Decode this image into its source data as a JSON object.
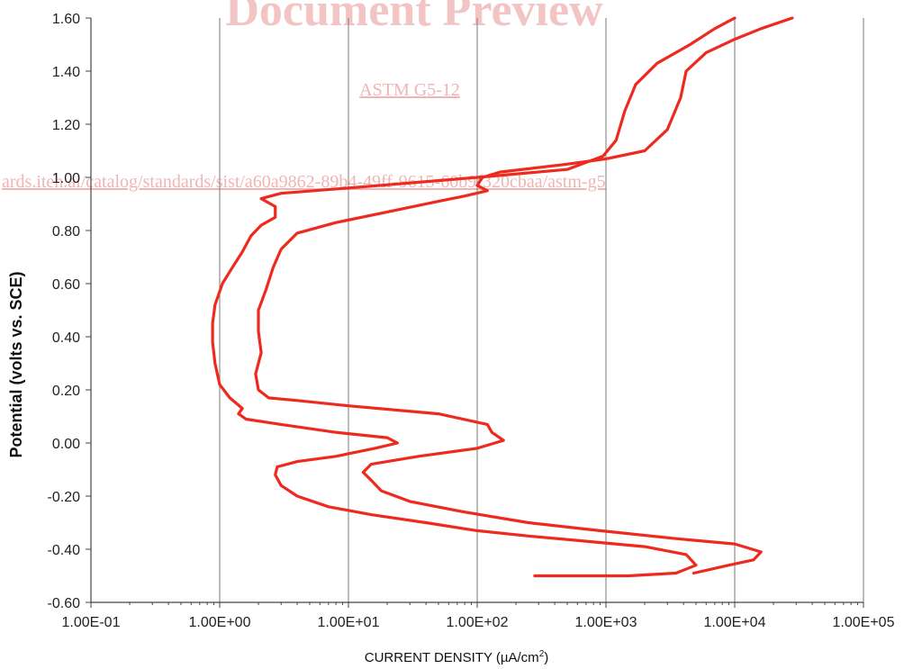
{
  "watermark": {
    "title": "Document Preview",
    "standard": "ASTM G5-12",
    "url": "ards.iteh.ai/catalog/standards/sist/a60a9862-89b4-49ff-9615-60b9f320cbaa/astm-g5"
  },
  "chart_data": {
    "type": "line",
    "xlabel": "CURRENT DENSITY (µA/cm",
    "xlabel_sup": "2",
    "xlabel_close": ")",
    "ylabel": "Potential (volts vs. SCE)",
    "x_scale": "log",
    "xlim": [
      0.1,
      100000
    ],
    "ylim": [
      -0.6,
      1.6
    ],
    "x_tick_values": [
      0.1,
      1,
      10,
      100,
      1000,
      10000,
      100000
    ],
    "x_tick_labels": [
      "1.00E-01",
      "1.00E+00",
      "1.00E+01",
      "1.00E+02",
      "1.00E+03",
      "1.00E+04",
      "1.00E+05"
    ],
    "y_tick_values": [
      -0.6,
      -0.4,
      -0.2,
      0.0,
      0.2,
      0.4,
      0.6,
      0.8,
      1.0,
      1.2,
      1.4,
      1.6
    ],
    "y_tick_labels": [
      "-0.60",
      "-0.40",
      "-0.20",
      "0.00",
      "0.20",
      "0.40",
      "0.60",
      "0.80",
      "1.00",
      "1.20",
      "1.40",
      "1.60"
    ],
    "grid": "vertical",
    "line_color": "#ee2a1f",
    "series": [
      {
        "points": [
          [
            280,
            -0.5
          ],
          [
            1500,
            -0.5
          ],
          [
            3500,
            -0.49
          ],
          [
            5000,
            -0.46
          ],
          [
            4200,
            -0.42
          ],
          [
            2000,
            -0.39
          ],
          [
            700,
            -0.37
          ],
          [
            250,
            -0.35
          ],
          [
            100,
            -0.33
          ],
          [
            40,
            -0.3
          ],
          [
            15,
            -0.27
          ],
          [
            7,
            -0.24
          ],
          [
            4,
            -0.2
          ],
          [
            3,
            -0.16
          ],
          [
            2.7,
            -0.12
          ],
          [
            2.8,
            -0.09
          ],
          [
            4,
            -0.07
          ],
          [
            8,
            -0.05
          ],
          [
            16,
            -0.02
          ],
          [
            24,
            0.0
          ],
          [
            20,
            0.02
          ],
          [
            8,
            0.04
          ],
          [
            3,
            0.07
          ],
          [
            1.6,
            0.09
          ],
          [
            1.4,
            0.11
          ],
          [
            1.5,
            0.13
          ],
          [
            1.2,
            0.17
          ],
          [
            1.0,
            0.22
          ],
          [
            0.92,
            0.3
          ],
          [
            0.88,
            0.38
          ],
          [
            0.88,
            0.45
          ],
          [
            0.92,
            0.52
          ],
          [
            1.05,
            0.6
          ],
          [
            1.25,
            0.66
          ],
          [
            1.5,
            0.72
          ],
          [
            1.75,
            0.78
          ],
          [
            2.1,
            0.82
          ],
          [
            2.7,
            0.85
          ],
          [
            2.7,
            0.89
          ],
          [
            2.1,
            0.92
          ],
          [
            3,
            0.94
          ],
          [
            10,
            0.96
          ],
          [
            100,
            1.0
          ],
          [
            500,
            1.03
          ],
          [
            950,
            1.08
          ],
          [
            1200,
            1.14
          ],
          [
            1400,
            1.25
          ],
          [
            1700,
            1.35
          ],
          [
            2500,
            1.43
          ],
          [
            4500,
            1.5
          ],
          [
            7000,
            1.56
          ],
          [
            10000,
            1.6
          ]
        ]
      },
      {
        "points": [
          [
            28000,
            1.6
          ],
          [
            16000,
            1.56
          ],
          [
            10000,
            1.52
          ],
          [
            6000,
            1.47
          ],
          [
            4200,
            1.4
          ],
          [
            3800,
            1.3
          ],
          [
            3000,
            1.18
          ],
          [
            2000,
            1.1
          ],
          [
            1000,
            1.07
          ],
          [
            500,
            1.05
          ],
          [
            150,
            1.02
          ],
          [
            110,
            1.0
          ],
          [
            100,
            0.97
          ],
          [
            120,
            0.95
          ],
          [
            80,
            0.93
          ],
          [
            50,
            0.91
          ],
          [
            20,
            0.87
          ],
          [
            8,
            0.83
          ],
          [
            4,
            0.79
          ],
          [
            3,
            0.73
          ],
          [
            2.6,
            0.66
          ],
          [
            2.3,
            0.58
          ],
          [
            2.0,
            0.5
          ],
          [
            2.0,
            0.42
          ],
          [
            2.1,
            0.34
          ],
          [
            1.9,
            0.26
          ],
          [
            2.0,
            0.2
          ],
          [
            2.4,
            0.17
          ],
          [
            4,
            0.16
          ],
          [
            10,
            0.14
          ],
          [
            50,
            0.11
          ],
          [
            120,
            0.07
          ],
          [
            130,
            0.04
          ],
          [
            160,
            0.01
          ],
          [
            100,
            -0.02
          ],
          [
            35,
            -0.05
          ],
          [
            15,
            -0.08
          ],
          [
            13,
            -0.11
          ],
          [
            15,
            -0.14
          ],
          [
            18,
            -0.18
          ],
          [
            30,
            -0.22
          ],
          [
            80,
            -0.26
          ],
          [
            250,
            -0.3
          ],
          [
            900,
            -0.33
          ],
          [
            3500,
            -0.36
          ],
          [
            10000,
            -0.38
          ],
          [
            16000,
            -0.41
          ],
          [
            14000,
            -0.44
          ],
          [
            9000,
            -0.46
          ],
          [
            4800,
            -0.49
          ]
        ]
      }
    ]
  }
}
